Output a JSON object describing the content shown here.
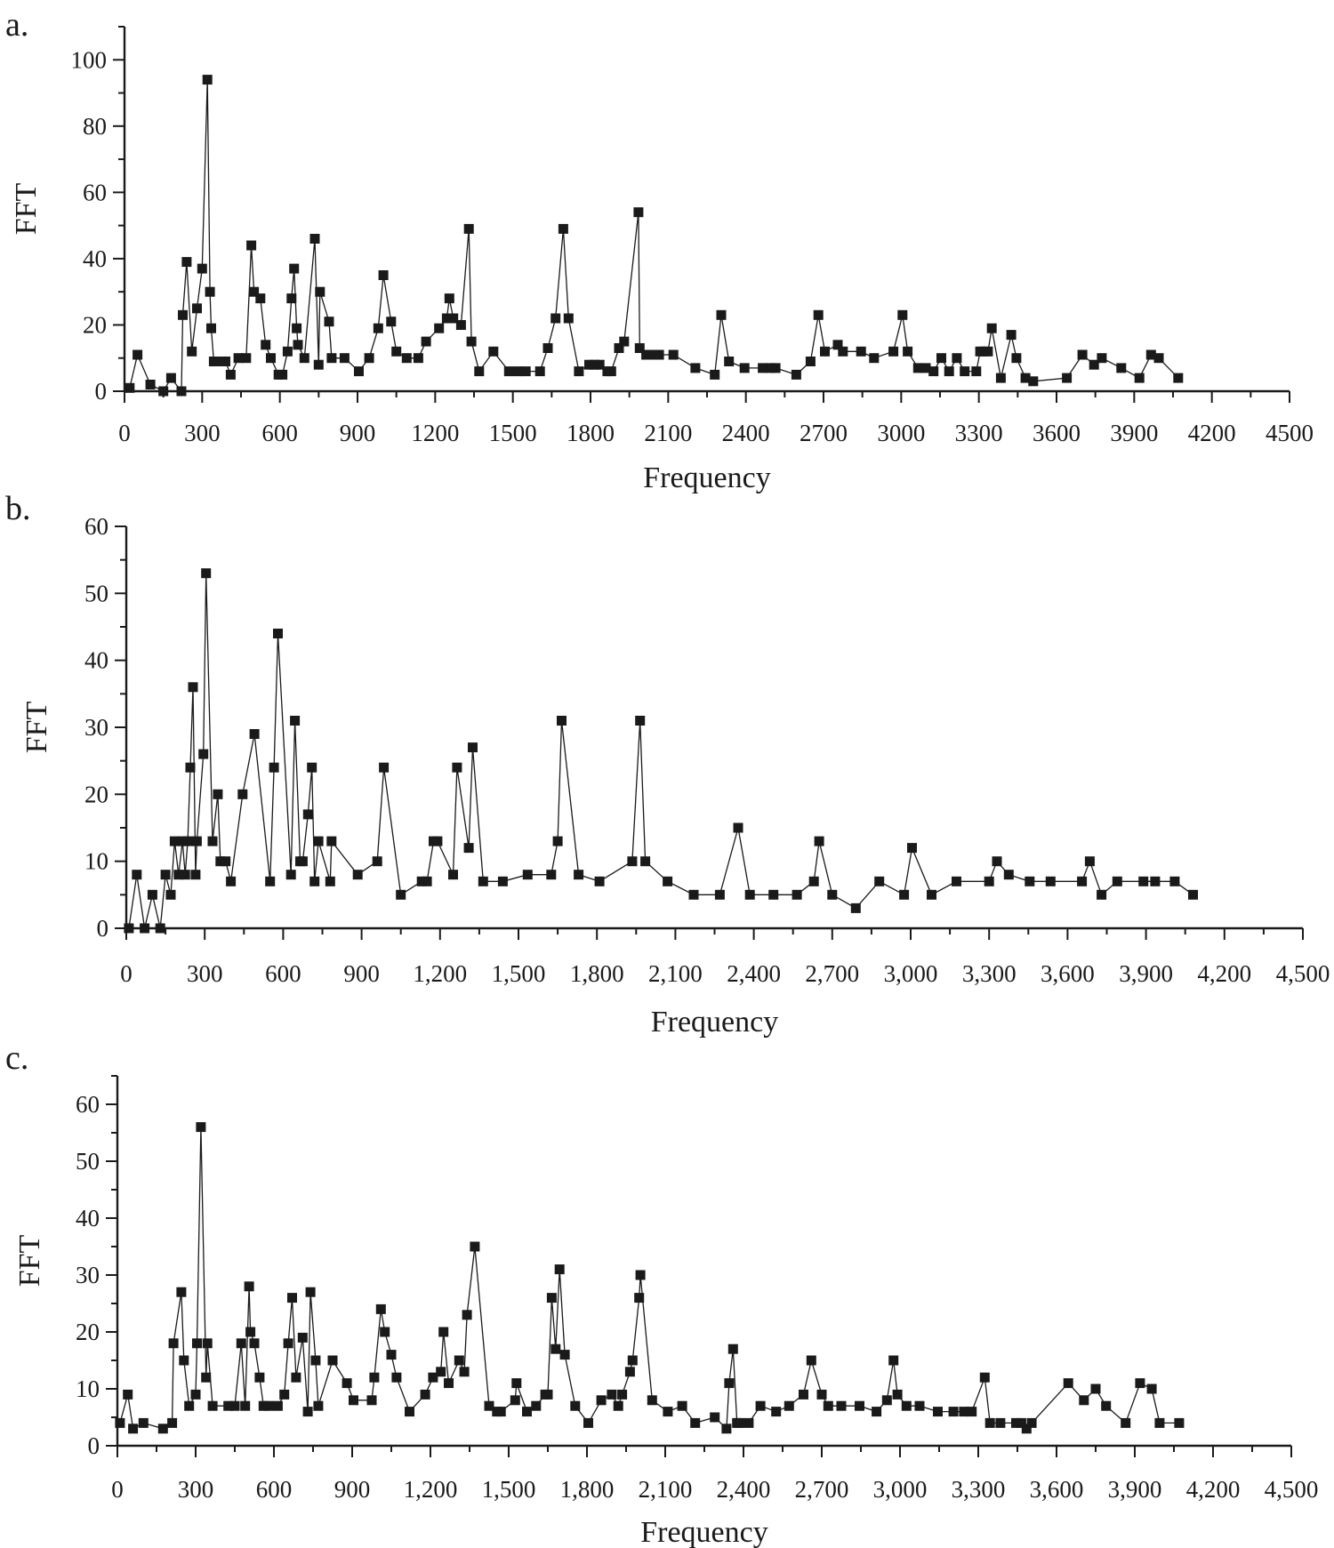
{
  "chart_data": [
    {
      "type": "line",
      "panel": "a.",
      "xlabel": "Frequency",
      "ylabel": "FFT",
      "xlim": [
        0,
        4500
      ],
      "ylim": [
        0,
        110
      ],
      "xticks": [
        0,
        300,
        600,
        900,
        1200,
        1500,
        1800,
        2100,
        2400,
        2700,
        3000,
        3300,
        3600,
        3900,
        4200,
        4500
      ],
      "xtick_labels": [
        "0",
        "300",
        "600",
        "900",
        "1200",
        "1500",
        "1800",
        "2100",
        "2400",
        "2700",
        "3000",
        "3300",
        "3600",
        "3900",
        "4200",
        "4500"
      ],
      "yticks": [
        0,
        20,
        40,
        60,
        80,
        100
      ],
      "ytick_labels": [
        "0",
        "20",
        "40",
        "60",
        "80",
        "100"
      ],
      "series": [
        {
          "name": "FFT",
          "x": [
            20,
            50,
            100,
            150,
            180,
            220,
            225,
            240,
            260,
            280,
            300,
            320,
            330,
            335,
            345,
            365,
            390,
            410,
            440,
            470,
            490,
            500,
            525,
            545,
            565,
            595,
            610,
            630,
            645,
            655,
            665,
            670,
            695,
            735,
            750,
            755,
            790,
            800,
            850,
            905,
            945,
            980,
            1000,
            1030,
            1050,
            1090,
            1135,
            1165,
            1215,
            1245,
            1255,
            1270,
            1300,
            1330,
            1340,
            1370,
            1425,
            1485,
            1520,
            1550,
            1605,
            1635,
            1665,
            1695,
            1715,
            1755,
            1795,
            1815,
            1835,
            1865,
            1880,
            1910,
            1930,
            1985,
            1990,
            2015,
            2040,
            2065,
            2120,
            2205,
            2280,
            2305,
            2335,
            2395,
            2465,
            2495,
            2515,
            2595,
            2650,
            2680,
            2705,
            2755,
            2775,
            2845,
            2895,
            2970,
            3005,
            3025,
            3065,
            3095,
            3125,
            3155,
            3185,
            3215,
            3245,
            3290,
            3305,
            3320,
            3335,
            3350,
            3385,
            3425,
            3445,
            3480,
            3510,
            3640,
            3700,
            3745,
            3775,
            3850,
            3920,
            3965,
            3995,
            4070
          ],
          "values": [
            1,
            11,
            2,
            0,
            4,
            0,
            23,
            39,
            12,
            25,
            37,
            94,
            30,
            19,
            9,
            9,
            9,
            5,
            10,
            10,
            44,
            30,
            28,
            14,
            10,
            5,
            5,
            12,
            28,
            37,
            19,
            14,
            10,
            46,
            8,
            30,
            21,
            10,
            10,
            6,
            10,
            19,
            35,
            21,
            12,
            10,
            10,
            15,
            19,
            22,
            28,
            22,
            20,
            49,
            15,
            6,
            12,
            6,
            6,
            6,
            6,
            13,
            22,
            49,
            22,
            6,
            8,
            8,
            8,
            6,
            6,
            13,
            15,
            54,
            13,
            11,
            11,
            11,
            11,
            7,
            5,
            23,
            9,
            7,
            7,
            7,
            7,
            5,
            9,
            23,
            12,
            14,
            12,
            12,
            10,
            12,
            23,
            12,
            7,
            7,
            6,
            10,
            6,
            10,
            6,
            6,
            12,
            12,
            12,
            19,
            4,
            17,
            10,
            4,
            3,
            4,
            11,
            8,
            10,
            7,
            4,
            11,
            10,
            4
          ]
        }
      ]
    },
    {
      "type": "line",
      "panel": "b.",
      "xlabel": "Frequency",
      "ylabel": "FFT",
      "xlim": [
        0,
        4500
      ],
      "ylim": [
        0,
        60
      ],
      "xticks": [
        0,
        300,
        600,
        900,
        1200,
        1500,
        1800,
        2100,
        2400,
        2700,
        3000,
        3300,
        3600,
        3900,
        4200,
        4500
      ],
      "xtick_labels": [
        "0",
        "300",
        "600",
        "900",
        "1,200",
        "1,500",
        "1,800",
        "2,100",
        "2,400",
        "2,700",
        "3,000",
        "3,300",
        "3,600",
        "3,900",
        "4,200",
        "4,500"
      ],
      "yticks": [
        0,
        10,
        20,
        30,
        40,
        50,
        60
      ],
      "ytick_labels": [
        "0",
        "10",
        "20",
        "30",
        "40",
        "50",
        "60"
      ],
      "series": [
        {
          "name": "FFT",
          "x": [
            10,
            40,
            70,
            100,
            130,
            150,
            170,
            185,
            200,
            215,
            225,
            235,
            245,
            255,
            265,
            270,
            295,
            305,
            330,
            350,
            360,
            380,
            400,
            445,
            490,
            550,
            565,
            580,
            630,
            645,
            665,
            675,
            695,
            710,
            720,
            735,
            780,
            785,
            885,
            960,
            985,
            1050,
            1130,
            1150,
            1175,
            1190,
            1250,
            1265,
            1310,
            1325,
            1365,
            1440,
            1535,
            1625,
            1650,
            1665,
            1730,
            1810,
            1935,
            1965,
            1985,
            2070,
            2170,
            2270,
            2340,
            2385,
            2475,
            2565,
            2630,
            2650,
            2700,
            2790,
            2880,
            2975,
            3005,
            3080,
            3175,
            3300,
            3330,
            3375,
            3455,
            3535,
            3655,
            3685,
            3730,
            3790,
            3890,
            3935,
            4010,
            4080
          ],
          "values": [
            0,
            8,
            0,
            5,
            0,
            8,
            5,
            13,
            8,
            13,
            8,
            13,
            24,
            36,
            8,
            13,
            26,
            53,
            13,
            20,
            10,
            10,
            7,
            20,
            29,
            7,
            24,
            44,
            8,
            31,
            10,
            10,
            17,
            24,
            7,
            13,
            7,
            13,
            8,
            10,
            24,
            5,
            7,
            7,
            13,
            13,
            8,
            24,
            12,
            27,
            7,
            7,
            8,
            8,
            13,
            31,
            8,
            7,
            10,
            31,
            10,
            7,
            5,
            5,
            15,
            5,
            5,
            5,
            7,
            13,
            5,
            3,
            7,
            5,
            12,
            5,
            7,
            7,
            10,
            8,
            7,
            7,
            7,
            10,
            5,
            7,
            7,
            7,
            7,
            5
          ]
        }
      ]
    },
    {
      "type": "line",
      "panel": "c.",
      "xlabel": "Frequency",
      "ylabel": "FFT",
      "xlim": [
        0,
        4500
      ],
      "ylim": [
        0,
        65
      ],
      "xticks": [
        0,
        300,
        600,
        900,
        1200,
        1500,
        1800,
        2100,
        2400,
        2700,
        3000,
        3300,
        3600,
        3900,
        4200,
        4500
      ],
      "xtick_labels": [
        "0",
        "300",
        "600",
        "900",
        "1,200",
        "1,500",
        "1,800",
        "2,100",
        "2,400",
        "2,700",
        "3,000",
        "3,300",
        "3,600",
        "3,900",
        "4,200",
        "4,500"
      ],
      "yticks": [
        0,
        10,
        20,
        30,
        40,
        50,
        60
      ],
      "ytick_labels": [
        "0",
        "10",
        "20",
        "30",
        "40",
        "50",
        "60"
      ],
      "series": [
        {
          "name": "FFT",
          "x": [
            10,
            40,
            60,
            100,
            175,
            210,
            215,
            245,
            255,
            275,
            300,
            305,
            320,
            340,
            345,
            365,
            425,
            450,
            475,
            490,
            505,
            510,
            525,
            545,
            560,
            580,
            615,
            640,
            655,
            670,
            685,
            710,
            730,
            740,
            760,
            770,
            825,
            880,
            905,
            975,
            985,
            1010,
            1025,
            1050,
            1070,
            1120,
            1180,
            1210,
            1240,
            1250,
            1270,
            1310,
            1330,
            1340,
            1370,
            1425,
            1455,
            1470,
            1525,
            1530,
            1570,
            1605,
            1640,
            1650,
            1665,
            1680,
            1695,
            1715,
            1755,
            1805,
            1855,
            1895,
            1920,
            1935,
            1965,
            1975,
            2000,
            2005,
            2050,
            2110,
            2165,
            2215,
            2290,
            2335,
            2345,
            2360,
            2375,
            2385,
            2420,
            2465,
            2525,
            2575,
            2630,
            2660,
            2700,
            2725,
            2775,
            2845,
            2910,
            2950,
            2975,
            2990,
            3025,
            3075,
            3145,
            3205,
            3245,
            3275,
            3325,
            3345,
            3385,
            3445,
            3465,
            3485,
            3505,
            3645,
            3705,
            3750,
            3790,
            3865,
            3920,
            3965,
            3995,
            4070
          ],
          "values": [
            4,
            9,
            3,
            4,
            3,
            4,
            18,
            27,
            15,
            7,
            9,
            18,
            56,
            12,
            18,
            7,
            7,
            7,
            18,
            7,
            28,
            20,
            18,
            12,
            7,
            7,
            7,
            9,
            18,
            26,
            12,
            19,
            6,
            27,
            15,
            7,
            15,
            11,
            8,
            8,
            12,
            24,
            20,
            16,
            12,
            6,
            9,
            12,
            13,
            20,
            11,
            15,
            13,
            23,
            35,
            7,
            6,
            6,
            8,
            11,
            6,
            7,
            9,
            9,
            26,
            17,
            31,
            16,
            7,
            4,
            8,
            9,
            7,
            9,
            13,
            15,
            26,
            30,
            8,
            6,
            7,
            4,
            5,
            3,
            11,
            17,
            4,
            4,
            4,
            7,
            6,
            7,
            9,
            15,
            9,
            7,
            7,
            7,
            6,
            8,
            15,
            9,
            7,
            7,
            6,
            6,
            6,
            6,
            12,
            4,
            4,
            4,
            4,
            3,
            4,
            11,
            8,
            10,
            7,
            4,
            11,
            10,
            4,
            4
          ]
        }
      ]
    }
  ]
}
